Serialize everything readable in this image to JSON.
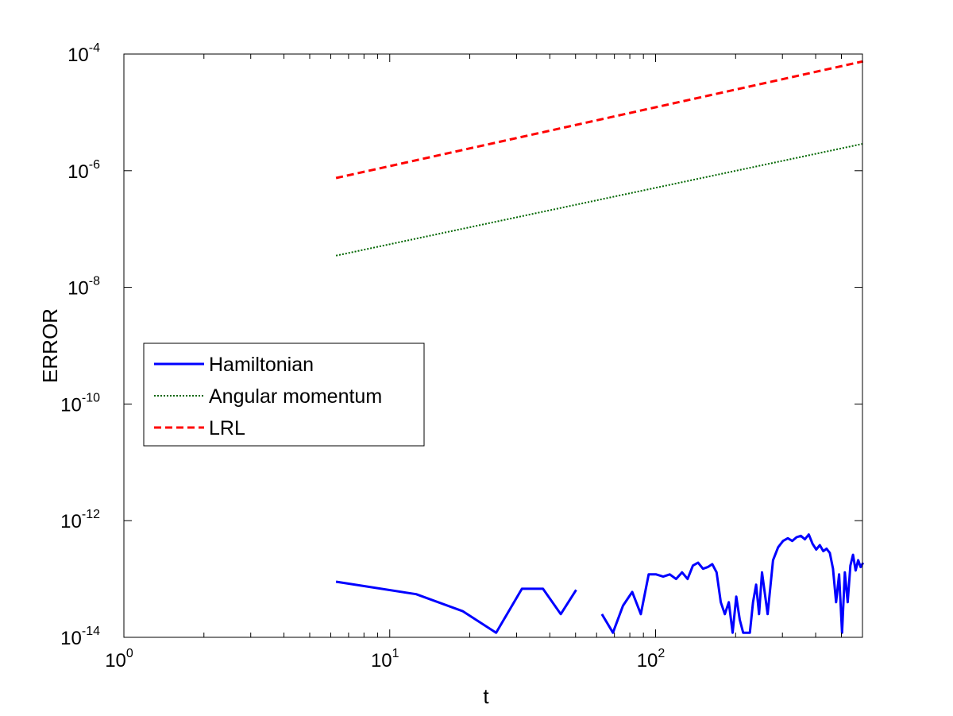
{
  "chart_data": {
    "type": "line",
    "title": "",
    "xlabel": "t",
    "ylabel": "ERROR",
    "x_scale": "log",
    "y_scale": "log",
    "xlim": [
      1,
      600
    ],
    "ylim": [
      1e-14,
      0.0001
    ],
    "grid": false,
    "legend_position": "center-left",
    "x_ticks": [
      {
        "value": 1,
        "base": "10",
        "exp": "0"
      },
      {
        "value": 10,
        "base": "10",
        "exp": "1"
      },
      {
        "value": 100,
        "base": "10",
        "exp": "2"
      }
    ],
    "y_ticks": [
      {
        "value": 1e-14,
        "base": "10",
        "exp": "-14"
      },
      {
        "value": 1e-12,
        "base": "10",
        "exp": "-12"
      },
      {
        "value": 1e-10,
        "base": "10",
        "exp": "-10"
      },
      {
        "value": 1e-08,
        "base": "10",
        "exp": "-8"
      },
      {
        "value": 1e-06,
        "base": "10",
        "exp": "-6"
      },
      {
        "value": 0.0001,
        "base": "10",
        "exp": "-4"
      }
    ],
    "series": [
      {
        "name": "Hamiltonian",
        "color": "#0000ff",
        "style": "solid",
        "segments": [
          {
            "x": [
              6.28,
              12.57,
              18.85,
              25.13,
              31.42,
              37.7,
              43.98,
              50.27
            ],
            "y": [
              9e-14,
              5.5e-14,
              2.8e-14,
              1.2e-14,
              6.8e-14,
              6.8e-14,
              2.5e-14,
              6.5e-14
            ]
          },
          {
            "x": [
              62.8,
              69.1,
              75.4,
              81.7,
              88.0,
              94.2,
              100.5,
              106.8,
              113.1,
              119.4,
              125.7,
              131.9,
              138.2,
              144.5,
              150.8,
              157.1,
              163.4,
              169.6,
              175.9,
              182.2,
              188.5,
              194.8,
              201.1,
              207.3,
              213.6,
              219.9,
              226.2,
              232.5,
              238.8,
              245.0,
              251.3,
              263.9,
              276.5,
              289.0,
              301.6,
              314.2,
              326.7,
              339.3,
              351.9,
              364.4,
              377.0,
              389.6,
              402.1,
              414.7,
              427.3,
              439.8,
              452.4,
              465.0,
              477.5,
              490.1,
              502.7,
              515.2,
              527.8,
              540.4,
              552.9,
              565.5,
              578.1,
              590.6,
              603.2
            ],
            "y": [
              2.5e-14,
              1.2e-14,
              3.5e-14,
              6e-14,
              2.5e-14,
              1.2e-13,
              1.2e-13,
              1.1e-13,
              1.2e-13,
              1e-13,
              1.3e-13,
              1e-13,
              1.7e-13,
              1.9e-13,
              1.5e-13,
              1.6e-13,
              1.8e-13,
              1.3e-13,
              4e-14,
              2.5e-14,
              4e-14,
              1.2e-14,
              5e-14,
              2e-14,
              1.2e-14,
              1.2e-14,
              1.2e-14,
              4e-14,
              8e-14,
              2.5e-14,
              1.3e-13,
              2.5e-14,
              2.1e-13,
              3.5e-13,
              4.5e-13,
              5e-13,
              4.5e-13,
              5.2e-13,
              5.5e-13,
              4.8e-13,
              5.8e-13,
              4e-13,
              3.2e-13,
              3.8e-13,
              3e-13,
              3.3e-13,
              2.8e-13,
              1.5e-13,
              4e-14,
              1.2e-13,
              1.2e-14,
              1.3e-13,
              4e-14,
              1.7e-13,
              2.6e-13,
              1.4e-13,
              2.1e-13,
              1.6e-13,
              1.9e-13
            ]
          }
        ]
      },
      {
        "name": "Angular momentum",
        "color": "#006600",
        "style": "dotted",
        "segments": [
          {
            "x": [
              6.28,
              603.2
            ],
            "y": [
              3.5e-08,
              2.9e-06
            ]
          }
        ]
      },
      {
        "name": "LRL",
        "color": "#ff0000",
        "style": "dashed",
        "segments": [
          {
            "x": [
              6.28,
              603.2
            ],
            "y": [
              7.5e-07,
              7.5e-05
            ]
          }
        ]
      }
    ]
  }
}
